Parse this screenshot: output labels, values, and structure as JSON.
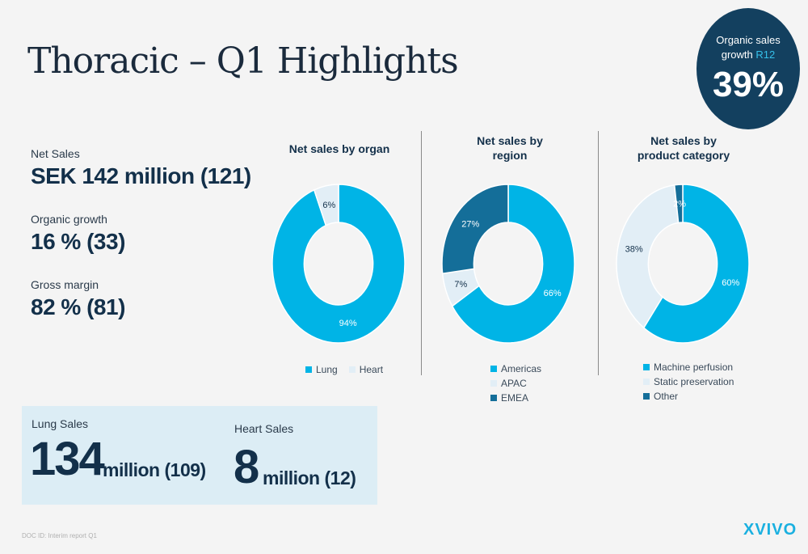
{
  "title": "Thoracic – Q1 Highlights",
  "growth_badge": {
    "line1": "Organic sales",
    "line2": "growth",
    "line2_accent": "R12",
    "value": "39%"
  },
  "kpis": [
    {
      "label": "Net Sales",
      "value": "SEK 142 million (121)"
    },
    {
      "label": "Organic growth",
      "value": "16 % (33)"
    },
    {
      "label": "Gross margin",
      "value": "82 % (81)"
    }
  ],
  "lung_sales": {
    "label": "Lung Sales",
    "value": "134",
    "suffix": "million (109)"
  },
  "heart_sales": {
    "label": "Heart Sales",
    "value": "8",
    "suffix": "million (12)"
  },
  "colors": {
    "dark_blue": "#13405f",
    "bright_blue": "#00b4e6",
    "light_blue": "#e2eef6",
    "mid_blue": "#146e99"
  },
  "chart_data": [
    {
      "type": "pie",
      "title_lines": [
        "Net sales by organ"
      ],
      "categories": [
        "Lung",
        "Heart"
      ],
      "values": [
        94,
        6
      ],
      "labels": [
        "94%",
        "6%"
      ],
      "colors": [
        "#00b4e6",
        "#e2eef6"
      ],
      "legend": "bottom"
    },
    {
      "type": "pie",
      "title_lines": [
        "Net sales by",
        "region"
      ],
      "categories": [
        "Americas",
        "APAC",
        "EMEA"
      ],
      "values": [
        66,
        7,
        27
      ],
      "labels": [
        "66%",
        "7%",
        "27%"
      ],
      "colors": [
        "#00b4e6",
        "#e2eef6",
        "#146e99"
      ],
      "legend": "bottom"
    },
    {
      "type": "pie",
      "title_lines": [
        "Net sales by",
        "product category"
      ],
      "categories": [
        "Machine perfusion",
        "Static preservation",
        "Other"
      ],
      "values": [
        60,
        38,
        2
      ],
      "labels": [
        "60%",
        "38%",
        "2%"
      ],
      "colors": [
        "#00b4e6",
        "#e2eef6",
        "#146e99"
      ],
      "legend": "bottom"
    }
  ],
  "footer": {
    "doc": "DOC ID:    Interim report Q1",
    "logo": "XVIVO"
  }
}
